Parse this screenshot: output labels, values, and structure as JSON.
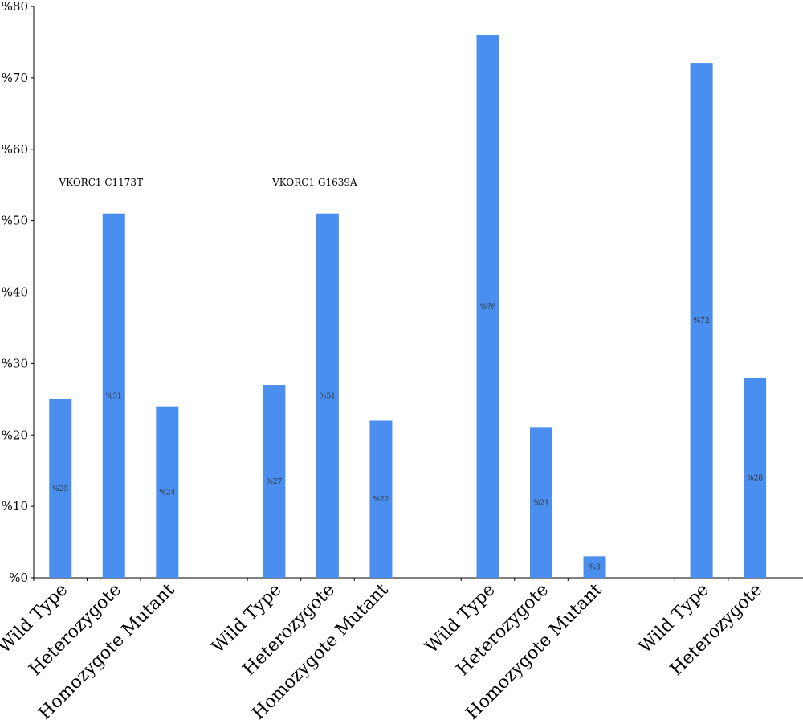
{
  "chart_data": {
    "type": "bar",
    "ylim": [
      0,
      80
    ],
    "yticks": [
      "%0",
      "%10",
      "%20",
      "%30",
      "%40",
      "%50",
      "%60",
      "%70",
      "%80"
    ],
    "groups": [
      {
        "annotation": "VKORC1  C1173T",
        "bars": [
          {
            "category": "Wild Type",
            "value": 25,
            "label": "%25"
          },
          {
            "category": "Heterozygote",
            "value": 51,
            "label": "%51"
          },
          {
            "category": "Homozygote Mutant",
            "value": 24,
            "label": "%24"
          }
        ]
      },
      {
        "annotation": "VKORC1  G1639A",
        "bars": [
          {
            "category": "Wild Type",
            "value": 27,
            "label": "%27"
          },
          {
            "category": "Heterozygote",
            "value": 51,
            "label": "%51"
          },
          {
            "category": "Homozygote Mutant",
            "value": 22,
            "label": "%22"
          }
        ]
      },
      {
        "annotation": "",
        "bars": [
          {
            "category": "Wild Type",
            "value": 76,
            "label": "%76"
          },
          {
            "category": "Heterozygote",
            "value": 21,
            "label": "%21"
          },
          {
            "category": "Homozygote Mutant",
            "value": 3,
            "label": "%3"
          }
        ]
      },
      {
        "annotation": "",
        "bars": [
          {
            "category": "Wild Type",
            "value": 72,
            "label": "%72"
          },
          {
            "category": "Heterozygote",
            "value": 28,
            "label": "%28"
          }
        ]
      }
    ],
    "bar_color": "#4a8ff0",
    "grid": false
  }
}
